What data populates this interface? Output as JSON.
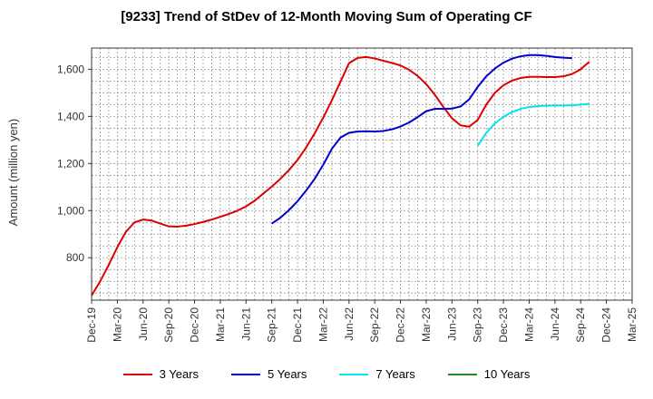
{
  "chart_data": {
    "type": "line",
    "title": "[9233]  Trend of StDev of 12-Month Moving Sum of Operating CF",
    "ylabel": "Amount (million yen)",
    "ylim": [
      620,
      1690
    ],
    "yticks": [
      800,
      1000,
      1200,
      1400,
      1600
    ],
    "ytick_labels": [
      "800",
      "1,000",
      "1,200",
      "1,400",
      "1,600"
    ],
    "x_categories": [
      "Dec-19",
      "Mar-20",
      "Jun-20",
      "Sep-20",
      "Dec-20",
      "Mar-21",
      "Jun-21",
      "Sep-21",
      "Dec-21",
      "Mar-22",
      "Jun-22",
      "Sep-22",
      "Dec-22",
      "Mar-23",
      "Jun-23",
      "Sep-23",
      "Dec-23",
      "Mar-24",
      "Jun-24",
      "Sep-24",
      "Dec-24",
      "Mar-25"
    ],
    "grid": true,
    "legend_position": "bottom",
    "series": [
      {
        "name": "3 Years",
        "color": "#dd0000",
        "start_index": 0,
        "values": [
          640,
          700,
          770,
          845,
          910,
          950,
          962,
          958,
          945,
          933,
          932,
          936,
          943,
          952,
          962,
          974,
          986,
          1000,
          1018,
          1042,
          1072,
          1102,
          1135,
          1172,
          1215,
          1268,
          1328,
          1395,
          1468,
          1547,
          1626,
          1648,
          1652,
          1646,
          1636,
          1627,
          1616,
          1598,
          1572,
          1537,
          1492,
          1440,
          1392,
          1362,
          1356,
          1385,
          1450,
          1500,
          1532,
          1552,
          1563,
          1568,
          1568,
          1567,
          1567,
          1570,
          1580,
          1600,
          1632
        ]
      },
      {
        "name": "5 Years",
        "color": "#0000cc",
        "start_index": 21,
        "values": [
          945,
          970,
          1002,
          1040,
          1085,
          1135,
          1195,
          1262,
          1310,
          1330,
          1336,
          1337,
          1336,
          1338,
          1345,
          1357,
          1374,
          1397,
          1422,
          1432,
          1432,
          1433,
          1442,
          1472,
          1525,
          1570,
          1603,
          1628,
          1645,
          1655,
          1660,
          1660,
          1657,
          1652,
          1649,
          1647
        ]
      },
      {
        "name": "7 Years",
        "color": "#00e5ee",
        "start_index": 45,
        "values": [
          1275,
          1330,
          1370,
          1398,
          1418,
          1432,
          1440,
          1443,
          1445,
          1446,
          1446,
          1447,
          1450,
          1453
        ]
      },
      {
        "name": "10 Years",
        "color": "#228822",
        "start_index": 0,
        "values": []
      }
    ]
  }
}
